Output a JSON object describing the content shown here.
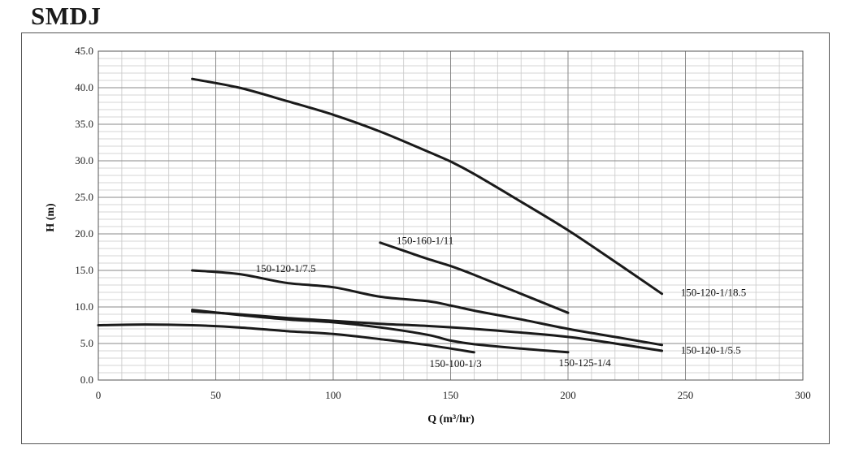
{
  "chart_data": {
    "type": "line",
    "title": "SMDJ",
    "xlabel": "Q (m³/hr)",
    "ylabel": "H (m)",
    "xlim": [
      0,
      300
    ],
    "ylim": [
      0,
      45
    ],
    "xticks": [
      "0",
      "50",
      "100",
      "150",
      "200",
      "250",
      "300"
    ],
    "yticks": [
      "0.0",
      "5.0",
      "10.0",
      "15.0",
      "20.0",
      "25.0",
      "30.0",
      "35.0",
      "40.0",
      "45.0"
    ],
    "grid": true,
    "series": [
      {
        "name": "150-120-1/18.5",
        "points": [
          [
            40,
            41.2
          ],
          [
            60,
            40.0
          ],
          [
            80,
            38.2
          ],
          [
            100,
            36.3
          ],
          [
            120,
            34.0
          ],
          [
            140,
            31.3
          ],
          [
            150,
            29.9
          ],
          [
            160,
            28.2
          ],
          [
            180,
            24.4
          ],
          [
            200,
            20.5
          ],
          [
            220,
            16.2
          ],
          [
            240,
            11.8
          ]
        ]
      },
      {
        "name": "150-160-1/11",
        "points": [
          [
            120,
            18.8
          ],
          [
            130,
            17.7
          ],
          [
            140,
            16.6
          ],
          [
            150,
            15.6
          ],
          [
            160,
            14.4
          ],
          [
            180,
            11.8
          ],
          [
            200,
            9.2
          ]
        ]
      },
      {
        "name": "150-120-1/7.5",
        "points": [
          [
            40,
            15.0
          ],
          [
            60,
            14.5
          ],
          [
            80,
            13.3
          ],
          [
            100,
            12.7
          ],
          [
            120,
            11.4
          ],
          [
            140,
            10.8
          ],
          [
            150,
            10.2
          ],
          [
            160,
            9.5
          ],
          [
            180,
            8.3
          ],
          [
            200,
            7.0
          ],
          [
            220,
            5.9
          ],
          [
            240,
            4.8
          ]
        ]
      },
      {
        "name": "150-120-1/5.5",
        "points": [
          [
            40,
            9.4
          ],
          [
            60,
            9.0
          ],
          [
            80,
            8.5
          ],
          [
            100,
            8.1
          ],
          [
            120,
            7.7
          ],
          [
            140,
            7.4
          ],
          [
            160,
            7.0
          ],
          [
            180,
            6.5
          ],
          [
            200,
            5.9
          ],
          [
            220,
            5.0
          ],
          [
            240,
            4.0
          ]
        ]
      },
      {
        "name": "150-125-1/4",
        "points": [
          [
            40,
            9.6
          ],
          [
            60,
            8.9
          ],
          [
            80,
            8.3
          ],
          [
            100,
            7.9
          ],
          [
            120,
            7.2
          ],
          [
            140,
            6.2
          ],
          [
            150,
            5.4
          ],
          [
            160,
            4.9
          ],
          [
            180,
            4.3
          ],
          [
            200,
            3.8
          ]
        ]
      },
      {
        "name": "150-100-1/3",
        "points": [
          [
            0,
            7.5
          ],
          [
            20,
            7.6
          ],
          [
            40,
            7.5
          ],
          [
            60,
            7.2
          ],
          [
            80,
            6.7
          ],
          [
            100,
            6.3
          ],
          [
            120,
            5.6
          ],
          [
            140,
            4.8
          ],
          [
            160,
            3.8
          ]
        ]
      }
    ]
  }
}
